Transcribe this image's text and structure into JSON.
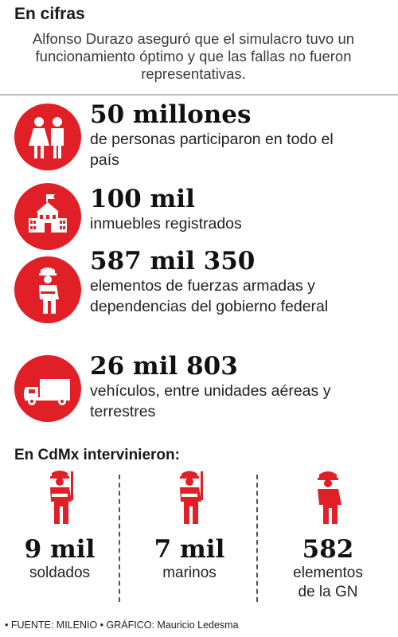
{
  "header": {
    "title": "En cifras",
    "subtitle": "Alfonso Durazo aseguró que el simulacro tuvo un funcionamiento óptimo y que las fallas no fueron representativas."
  },
  "stats": [
    {
      "value": "50 millones",
      "description": "de personas participaron en todo el país",
      "icon": "people-icon"
    },
    {
      "value": "100 mil",
      "description": "inmuebles registrados",
      "icon": "building-icon"
    },
    {
      "value": "587 mil 350",
      "description": "elementos de fuerzas armadas y dependencias del gobierno federal",
      "icon": "police-officer-icon"
    },
    {
      "value": "26 mil 803",
      "description": "vehículos, entre unidades aéreas y terrestres",
      "icon": "truck-icon"
    }
  ],
  "cdmx": {
    "heading": "En CdMx intervinieron:",
    "items": [
      {
        "value": "9 mil",
        "label": "soldados",
        "icon": "soldier-icon"
      },
      {
        "value": "7 mil",
        "label": "marinos",
        "icon": "marine-icon"
      },
      {
        "value": "582",
        "label": "elementos de la GN",
        "icon": "guard-icon"
      }
    ]
  },
  "footer": {
    "source": "• FUENTE: MILENIO • GRÁFICO: Mauricio Ledesma"
  },
  "colors": {
    "accent": "#e01f26",
    "text": "#1a1a1a"
  }
}
